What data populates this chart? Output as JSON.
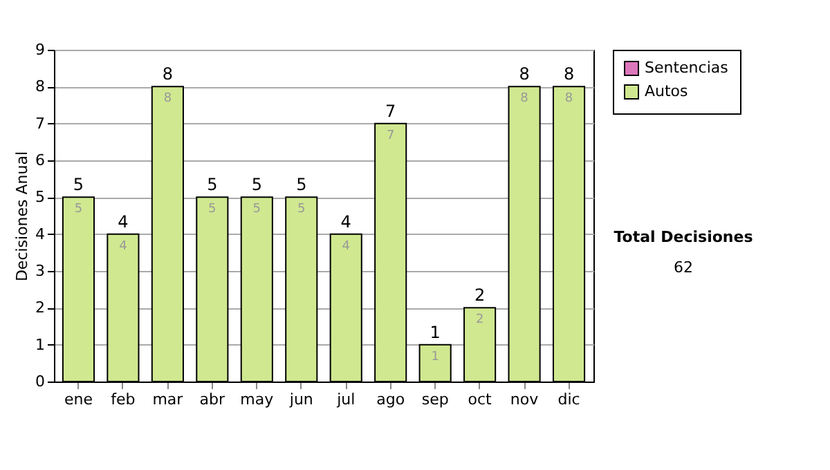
{
  "chart_data": {
    "type": "bar",
    "ylabel": "Decisiones Anual",
    "categories": [
      "ene",
      "feb",
      "mar",
      "abr",
      "may",
      "jun",
      "jul",
      "ago",
      "sep",
      "oct",
      "nov",
      "dic"
    ],
    "series": [
      {
        "name": "Sentencias",
        "color": "#dd77bb",
        "values": [
          0,
          0,
          0,
          0,
          0,
          0,
          0,
          0,
          0,
          0,
          0,
          0
        ]
      },
      {
        "name": "Autos",
        "color": "#d0e890",
        "values": [
          5,
          4,
          8,
          5,
          5,
          5,
          4,
          7,
          1,
          2,
          8,
          8
        ],
        "value_labels": [
          "5",
          "4",
          "8",
          "5",
          "5",
          "5",
          "4",
          "7",
          "1",
          "2",
          "8",
          "8"
        ]
      }
    ],
    "stacked": true,
    "totals": [
      "5",
      "4",
      "8",
      "5",
      "5",
      "5",
      "4",
      "7",
      "1",
      "2",
      "8",
      "8"
    ],
    "ylim": [
      0,
      9
    ],
    "yticks": [
      0,
      1,
      2,
      3,
      4,
      5,
      6,
      7,
      8,
      9
    ],
    "grid": "y",
    "legend": "right",
    "annotations": [
      "Total Decisiones",
      "62"
    ]
  }
}
